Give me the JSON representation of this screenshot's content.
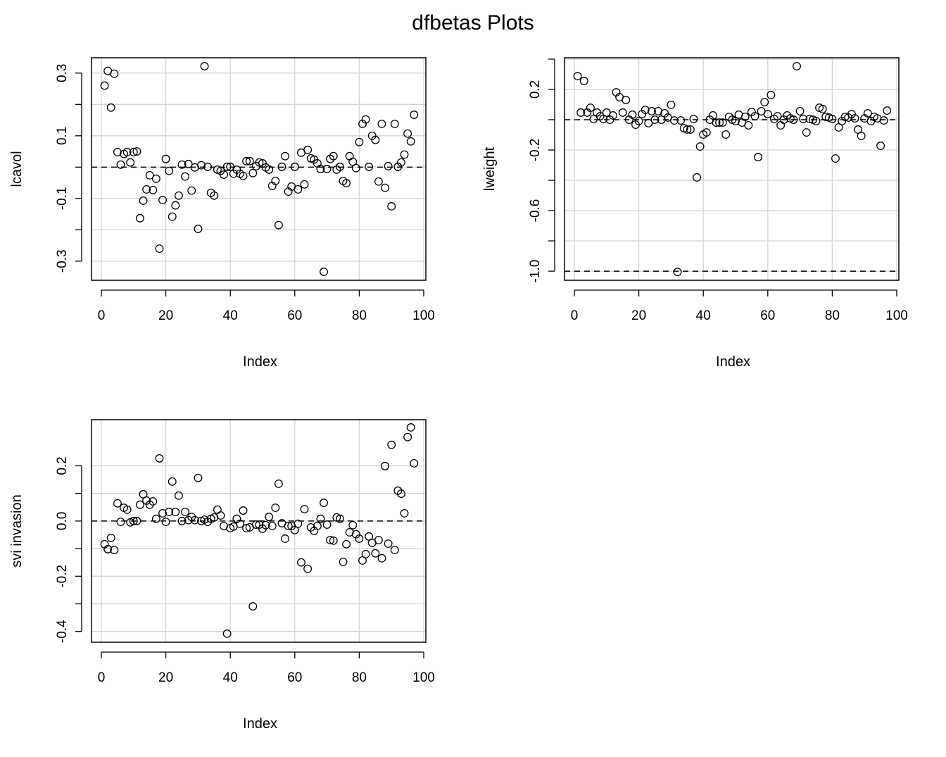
{
  "chart_data": [
    {
      "type": "scatter",
      "title": "dfbetas Plots",
      "xlabel": "Index",
      "ylabel": "lcavol",
      "xlim": [
        0,
        100
      ],
      "ylim": [
        -0.361,
        0.349
      ],
      "xticks": [
        0,
        20,
        40,
        60,
        80,
        100
      ],
      "yticks": [
        -0.3,
        -0.2,
        -0.1,
        0.0,
        0.1,
        0.2,
        0.3
      ],
      "ytick_labels": [
        "-0.3",
        "",
        "-0.1",
        "",
        "0.1",
        "",
        "0.3"
      ],
      "grid": true,
      "hlines": [
        0
      ],
      "values": [
        0.26,
        0.307,
        0.19,
        0.298,
        0.048,
        0.008,
        0.042,
        0.048,
        0.015,
        0.048,
        0.05,
        -0.163,
        -0.107,
        -0.071,
        -0.026,
        -0.073,
        -0.037,
        -0.26,
        -0.105,
        0.026,
        -0.012,
        -0.158,
        -0.122,
        -0.091,
        0.008,
        -0.03,
        0.01,
        -0.075,
        -0.001,
        -0.197,
        0.006,
        0.322,
        0.001,
        -0.082,
        -0.091,
        -0.008,
        -0.012,
        -0.024,
        0.001,
        0.001,
        -0.021,
        -0.008,
        -0.021,
        -0.028,
        0.019,
        0.019,
        -0.019,
        0.003,
        0.015,
        0.012,
        -0.001,
        -0.008,
        -0.06,
        -0.044,
        -0.185,
        0.001,
        0.035,
        -0.078,
        -0.062,
        0.001,
        -0.071,
        0.046,
        -0.055,
        0.055,
        0.028,
        0.024,
        0.012,
        -0.006,
        -0.334,
        -0.006,
        0.026,
        0.035,
        -0.008,
        0.001,
        -0.044,
        -0.051,
        0.035,
        0.017,
        -0.003,
        0.08,
        0.138,
        0.152,
        0.001,
        0.1,
        0.087,
        -0.046,
        0.138,
        -0.066,
        0.003,
        -0.125,
        0.138,
        0.001,
        0.015,
        0.04,
        0.107,
        0.082,
        0.167
      ]
    },
    {
      "type": "scatter",
      "xlabel": "Index",
      "ylabel": "lweight",
      "xlim": [
        0,
        100
      ],
      "ylim": [
        -1.06,
        0.409
      ],
      "xticks": [
        0,
        20,
        40,
        60,
        80,
        100
      ],
      "yticks": [
        -1.0,
        -0.8,
        -0.6,
        -0.4,
        -0.2,
        0.0,
        0.2,
        0.4
      ],
      "ytick_labels": [
        "-1.0",
        "",
        "-0.6",
        "",
        "-0.2",
        "",
        "0.2",
        ""
      ],
      "grid": true,
      "hlines": [
        0,
        -1.0
      ],
      "values": [
        0.288,
        0.047,
        0.256,
        0.047,
        0.079,
        0.005,
        0.047,
        0.023,
        0.005,
        0.047,
        0,
        0.028,
        0.181,
        0.149,
        0.047,
        0.13,
        0,
        0.033,
        -0.033,
        -0.009,
        0.037,
        0.065,
        -0.023,
        0.056,
        0,
        0.056,
        0,
        0.042,
        0.014,
        0.098,
        -0.005,
        -1.005,
        -0.005,
        -0.056,
        -0.065,
        -0.065,
        0.005,
        -0.381,
        -0.177,
        -0.098,
        -0.084,
        0,
        0.028,
        -0.019,
        -0.019,
        -0.019,
        -0.098,
        0.019,
        0,
        -0.009,
        0.033,
        -0.019,
        0.019,
        -0.037,
        0.051,
        0.023,
        -0.247,
        0.056,
        0.116,
        0.037,
        0.163,
        0.005,
        0.023,
        -0.037,
        0,
        0.028,
        0.009,
        0,
        0.353,
        0.056,
        0.005,
        -0.084,
        0.005,
        0,
        -0.009,
        0.079,
        0.07,
        0.019,
        0.014,
        0.005,
        -0.256,
        -0.051,
        -0.009,
        0.019,
        0.014,
        0.037,
        0.009,
        -0.065,
        -0.107,
        0.009,
        0.042,
        -0.009,
        0.019,
        0.009,
        -0.172,
        -0.005,
        0.06
      ]
    },
    {
      "type": "scatter",
      "xlabel": "Index",
      "ylabel": "svi invasion",
      "xlim": [
        0,
        100
      ],
      "ylim": [
        -0.439,
        0.367
      ],
      "xticks": [
        0,
        20,
        40,
        60,
        80,
        100
      ],
      "yticks": [
        -0.4,
        -0.3,
        -0.2,
        -0.1,
        0.0,
        0.1,
        0.2
      ],
      "ytick_labels": [
        "-0.4",
        "",
        "-0.2",
        "",
        "0.0",
        "",
        "0.2"
      ],
      "grid": true,
      "hlines": [
        0
      ],
      "values": [
        -0.084,
        -0.102,
        -0.061,
        -0.105,
        0.064,
        -0.003,
        0.048,
        0.041,
        -0.005,
        0,
        0,
        0.059,
        0.097,
        0.074,
        0.059,
        0.071,
        0.008,
        0.227,
        0.028,
        -0.003,
        0.033,
        0.143,
        0.033,
        0.092,
        0,
        0.033,
        0.003,
        0.015,
        0.003,
        0.156,
        0,
        0.005,
        -0.003,
        0.008,
        0.013,
        0.041,
        0.02,
        -0.018,
        -0.408,
        -0.026,
        -0.02,
        0.008,
        -0.01,
        0.038,
        -0.026,
        -0.023,
        -0.309,
        -0.013,
        -0.013,
        -0.028,
        -0.015,
        0.015,
        -0.018,
        0.048,
        0.135,
        -0.008,
        -0.064,
        -0.018,
        -0.018,
        -0.033,
        -0.01,
        -0.15,
        0.043,
        -0.173,
        -0.023,
        -0.036,
        -0.018,
        0.008,
        0.066,
        -0.013,
        -0.069,
        -0.071,
        0.013,
        0.008,
        -0.148,
        -0.084,
        -0.041,
        -0.015,
        -0.048,
        -0.064,
        -0.143,
        -0.12,
        -0.056,
        -0.079,
        -0.117,
        -0.069,
        -0.135,
        0.199,
        -0.082,
        0.276,
        -0.105,
        0.11,
        0.099,
        0.028,
        0.304,
        0.339,
        0.209
      ]
    }
  ]
}
